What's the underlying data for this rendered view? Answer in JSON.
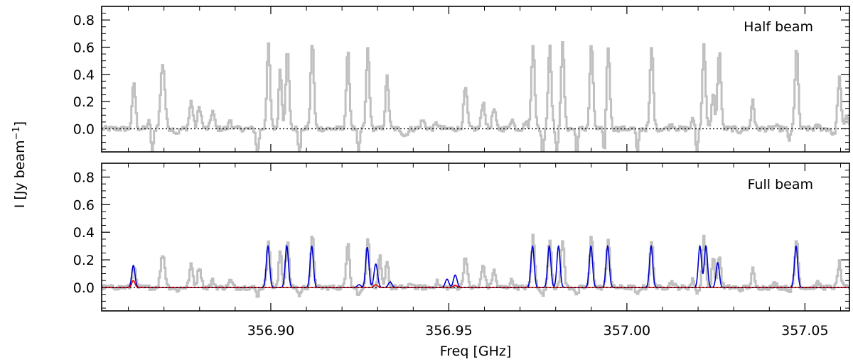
{
  "chart_data": {
    "type": "line",
    "xlabel": "Freq [GHz]",
    "ylabel": "I [Jy beam",
    "ylabel_sup": "−1",
    "ylabel_close": "]",
    "xlim": [
      356.8525,
      357.0625
    ],
    "xticks": [
      356.9,
      356.95,
      357.0,
      357.05
    ],
    "xtick_labels": [
      "356.90",
      "356.95",
      "357.00",
      "357.05"
    ],
    "yticks": [
      0.0,
      0.2,
      0.4,
      0.6,
      0.8
    ],
    "ytick_labels": [
      "0.0",
      "0.2",
      "0.4",
      "0.6",
      "0.8"
    ],
    "colors": {
      "observed": "#c0c0c0",
      "model_blue": "#0000cc",
      "model_red": "#dd0000",
      "zero_line": "#000000"
    },
    "panels": [
      {
        "label": "Half beam",
        "ylim": [
          -0.17,
          0.9
        ],
        "series": [
          {
            "style": "observed-step",
            "noise": 0.02,
            "peaks": [
              [
                356.8614,
                0.34,
                0.00045
              ],
              [
                356.8656,
                0.05,
                0.0004
              ],
              [
                356.8666,
                -0.2,
                0.0003
              ],
              [
                356.8695,
                0.48,
                0.0006
              ],
              [
                356.8735,
                -0.03,
                0.0006
              ],
              [
                356.8775,
                0.2,
                0.0005
              ],
              [
                356.8798,
                0.16,
                0.0005
              ],
              [
                356.8835,
                0.13,
                0.0005
              ],
              [
                356.8885,
                0.07,
                0.0004
              ],
              [
                356.8961,
                -0.17,
                0.0004
              ],
              [
                356.8992,
                0.61,
                0.00045
              ],
              [
                356.9025,
                0.45,
                0.0004
              ],
              [
                356.9045,
                0.6,
                0.00045
              ],
              [
                356.9079,
                -0.2,
                0.0003
              ],
              [
                356.9115,
                0.64,
                0.00045
              ],
              [
                356.9215,
                0.56,
                0.00045
              ],
              [
                356.9245,
                -0.2,
                0.0003
              ],
              [
                356.9271,
                0.59,
                0.00045
              ],
              [
                356.9325,
                0.38,
                0.00045
              ],
              [
                356.9375,
                -0.05,
                0.0007
              ],
              [
                356.9425,
                0.06,
                0.0006
              ],
              [
                356.9465,
                0.04,
                0.0005
              ],
              [
                356.9508,
                0.0,
                0.0004
              ],
              [
                356.9545,
                0.3,
                0.0005
              ],
              [
                356.9595,
                0.2,
                0.0005
              ],
              [
                356.9625,
                0.14,
                0.0005
              ],
              [
                356.9675,
                0.07,
                0.0005
              ],
              [
                356.9715,
                0.05,
                0.0005
              ],
              [
                356.9735,
                0.63,
                0.00045
              ],
              [
                356.9762,
                -0.2,
                0.0003
              ],
              [
                356.9782,
                0.62,
                0.00045
              ],
              [
                356.9802,
                -0.2,
                0.0003
              ],
              [
                356.9818,
                0.62,
                0.00045
              ],
              [
                356.9858,
                -0.2,
                0.0003
              ],
              [
                356.9899,
                0.63,
                0.00045
              ],
              [
                356.9935,
                -0.2,
                0.0003
              ],
              [
                356.9946,
                0.6,
                0.00045
              ],
              [
                357.0028,
                -0.2,
                0.0003
              ],
              [
                357.0068,
                0.6,
                0.00045
              ],
              [
                357.0125,
                0.03,
                0.0006
              ],
              [
                357.0185,
                0.07,
                0.0005
              ],
              [
                357.0195,
                -0.2,
                0.0003
              ],
              [
                357.0215,
                0.61,
                0.00045
              ],
              [
                357.0241,
                0.27,
                0.0004
              ],
              [
                357.0258,
                0.58,
                0.00045
              ],
              [
                357.0315,
                -0.02,
                0.0005
              ],
              [
                357.0352,
                0.22,
                0.0004
              ],
              [
                357.0415,
                0.02,
                0.0005
              ],
              [
                357.0455,
                -0.08,
                0.0004
              ],
              [
                357.0475,
                0.6,
                0.00045
              ],
              [
                357.0535,
                0.02,
                0.0005
              ],
              [
                357.0578,
                -0.05,
                0.0004
              ],
              [
                357.0595,
                0.38,
                0.00045
              ],
              [
                357.0615,
                0.1,
                0.0005
              ]
            ]
          }
        ]
      },
      {
        "label": "Full beam",
        "ylim": [
          -0.17,
          0.9
        ],
        "series": [
          {
            "style": "observed-step",
            "noise": 0.018,
            "peaks": [
              [
                356.8614,
                0.16,
                0.00045
              ],
              [
                356.8695,
                0.24,
                0.0006
              ],
              [
                356.8735,
                -0.02,
                0.0006
              ],
              [
                356.8775,
                0.16,
                0.0005
              ],
              [
                356.8798,
                0.15,
                0.0005
              ],
              [
                356.8835,
                0.05,
                0.0005
              ],
              [
                356.8885,
                0.05,
                0.0005
              ],
              [
                356.8961,
                -0.06,
                0.0004
              ],
              [
                356.8992,
                0.35,
                0.00045
              ],
              [
                356.9025,
                0.27,
                0.0004
              ],
              [
                356.9045,
                0.34,
                0.00045
              ],
              [
                356.9079,
                -0.06,
                0.0004
              ],
              [
                356.9115,
                0.37,
                0.00045
              ],
              [
                356.9215,
                0.34,
                0.00045
              ],
              [
                356.9245,
                -0.06,
                0.0004
              ],
              [
                356.9271,
                0.36,
                0.00045
              ],
              [
                356.9305,
                0.22,
                0.0004
              ],
              [
                356.9325,
                0.2,
                0.0004
              ],
              [
                356.9395,
                0.03,
                0.0005
              ],
              [
                356.9465,
                0.04,
                0.0005
              ],
              [
                356.9545,
                0.23,
                0.0005
              ],
              [
                356.9595,
                0.16,
                0.0005
              ],
              [
                356.9625,
                0.12,
                0.0005
              ],
              [
                356.9675,
                0.05,
                0.0005
              ],
              [
                356.9735,
                0.37,
                0.00045
              ],
              [
                356.9762,
                -0.06,
                0.0004
              ],
              [
                356.9782,
                0.36,
                0.00045
              ],
              [
                356.9818,
                0.35,
                0.00045
              ],
              [
                356.9858,
                -0.06,
                0.0004
              ],
              [
                356.9899,
                0.37,
                0.00045
              ],
              [
                356.9946,
                0.36,
                0.00045
              ],
              [
                357.0028,
                -0.06,
                0.0004
              ],
              [
                357.0068,
                0.33,
                0.00045
              ],
              [
                357.0125,
                0.04,
                0.0006
              ],
              [
                357.0185,
                0.06,
                0.0005
              ],
              [
                357.0195,
                -0.05,
                0.0004
              ],
              [
                357.0215,
                0.37,
                0.00045
              ],
              [
                357.0241,
                0.22,
                0.0004
              ],
              [
                357.0258,
                0.23,
                0.00045
              ],
              [
                357.0315,
                -0.02,
                0.0005
              ],
              [
                357.0352,
                0.13,
                0.0004
              ],
              [
                357.0415,
                0.03,
                0.0005
              ],
              [
                357.0455,
                -0.02,
                0.0005
              ],
              [
                357.0475,
                0.35,
                0.00045
              ],
              [
                357.0535,
                0.03,
                0.0005
              ],
              [
                357.0595,
                0.18,
                0.00045
              ]
            ]
          },
          {
            "style": "model-blue",
            "peaks": [
              [
                356.8614,
                0.16,
                0.00045
              ],
              [
                356.8992,
                0.3,
                0.00045
              ],
              [
                356.9045,
                0.3,
                0.00045
              ],
              [
                356.9115,
                0.3,
                0.00045
              ],
              [
                356.9271,
                0.29,
                0.00045
              ],
              [
                356.9295,
                0.17,
                0.0005
              ],
              [
                356.9335,
                0.04,
                0.0005
              ],
              [
                356.9248,
                0.02,
                0.0005
              ],
              [
                356.9495,
                0.06,
                0.0005
              ],
              [
                356.9518,
                0.09,
                0.0005
              ],
              [
                356.9735,
                0.3,
                0.00045
              ],
              [
                356.9782,
                0.3,
                0.00045
              ],
              [
                356.9808,
                0.3,
                0.00045
              ],
              [
                356.9899,
                0.3,
                0.00045
              ],
              [
                356.9946,
                0.3,
                0.00045
              ],
              [
                357.0068,
                0.3,
                0.00045
              ],
              [
                357.0205,
                0.3,
                0.00045
              ],
              [
                357.0222,
                0.3,
                0.00045
              ],
              [
                357.0255,
                0.18,
                0.00045
              ],
              [
                357.0475,
                0.3,
                0.00045
              ]
            ]
          },
          {
            "style": "model-red",
            "peaks": [
              [
                356.8614,
                0.05,
                0.00045
              ],
              [
                356.9295,
                0.02,
                0.0005
              ],
              [
                356.9518,
                0.015,
                0.0005
              ]
            ]
          }
        ]
      }
    ]
  }
}
